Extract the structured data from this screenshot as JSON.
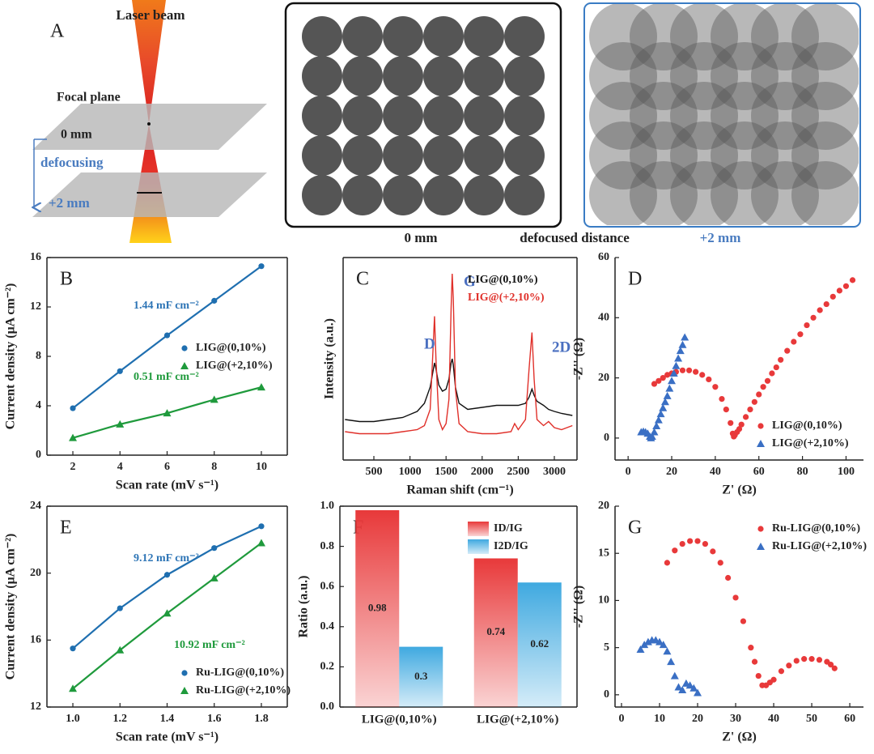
{
  "diagram": {
    "panel_label": "A",
    "laser": "Laser beam",
    "focal": "Focal plane",
    "zero": "0 mm",
    "defocusing": "defocusing",
    "plus2": "+2 mm",
    "caption_left": "0 mm",
    "caption_mid": "defocused distance",
    "caption_right": "+2 mm"
  },
  "chart_data": [
    {
      "type": "scatter",
      "panel_label": "B",
      "connect": true,
      "x_label": "Scan rate (mV s⁻¹)",
      "y_label": "Current density (μA cm⁻²)",
      "x": [
        2,
        4,
        6,
        8,
        10
      ],
      "xlim": [
        0.9,
        11.1
      ],
      "xticks": [
        2,
        4,
        6,
        8,
        10
      ],
      "ylim": [
        0,
        16
      ],
      "yticks": [
        0,
        4,
        8,
        12,
        16
      ],
      "series": [
        {
          "name": "LIG@(0,10%)",
          "color": "#1f6fb0",
          "marker": "circle",
          "values": [
            3.8,
            6.8,
            9.7,
            12.5,
            15.3
          ]
        },
        {
          "name": "LIG@(+2,10%)",
          "color": "#1f9a3c",
          "marker": "triangle",
          "values": [
            1.4,
            2.5,
            3.4,
            4.5,
            5.5
          ]
        }
      ],
      "annotations": [
        {
          "text": "1.44 mF cm⁻²",
          "color": "#2e75b6"
        },
        {
          "text": "0.51 mF cm⁻²",
          "color": "#1f9a3c"
        }
      ],
      "legend": "center right"
    },
    {
      "type": "line",
      "panel_label": "C",
      "x_label": "Raman shift (cm⁻¹)",
      "y_label": "Intensity (a.u.)",
      "x": [
        100,
        300,
        500,
        700,
        900,
        1100,
        1200,
        1280,
        1320,
        1340,
        1360,
        1400,
        1450,
        1500,
        1540,
        1570,
        1585,
        1600,
        1630,
        1680,
        1800,
        2000,
        2200,
        2400,
        2450,
        2500,
        2600,
        2650,
        2690,
        2720,
        2760,
        2850,
        2920,
        3000,
        3100,
        3250
      ],
      "xlim": [
        74,
        3314
      ],
      "xticks": [
        500,
        1000,
        1500,
        2000,
        2500,
        3000
      ],
      "ylim": [
        0,
        1
      ],
      "series": [
        {
          "name": "LIG@(0,10%)",
          "color": "#111111",
          "values": [
            0.2,
            0.19,
            0.19,
            0.2,
            0.21,
            0.24,
            0.28,
            0.36,
            0.44,
            0.48,
            0.45,
            0.37,
            0.34,
            0.35,
            0.4,
            0.48,
            0.5,
            0.47,
            0.36,
            0.28,
            0.25,
            0.26,
            0.27,
            0.27,
            0.27,
            0.27,
            0.28,
            0.31,
            0.35,
            0.32,
            0.29,
            0.27,
            0.25,
            0.24,
            0.23,
            0.22
          ]
        },
        {
          "name": "LIG@(+2,10%)",
          "color": "#e0302a",
          "values": [
            0.14,
            0.13,
            0.13,
            0.13,
            0.14,
            0.15,
            0.17,
            0.25,
            0.55,
            0.71,
            0.5,
            0.2,
            0.15,
            0.18,
            0.3,
            0.75,
            0.92,
            0.8,
            0.35,
            0.18,
            0.14,
            0.13,
            0.13,
            0.14,
            0.18,
            0.15,
            0.2,
            0.45,
            0.63,
            0.4,
            0.2,
            0.17,
            0.19,
            0.16,
            0.15,
            0.17
          ]
        }
      ],
      "annotations": [
        {
          "text": "D",
          "color": "#4a6fc0"
        },
        {
          "text": "G",
          "color": "#4a6fc0"
        },
        {
          "text": "2D",
          "color": "#4a6fc0"
        }
      ],
      "legend": "upper right"
    },
    {
      "type": "scatter",
      "panel_label": "D",
      "x_label": "Z' (Ω)",
      "y_label": "-Z'' (Ω)",
      "xlim": [
        -6,
        108
      ],
      "xticks": [
        0,
        20,
        40,
        60,
        80,
        100
      ],
      "ylim": [
        -7.3,
        60
      ],
      "yticks": [
        0,
        20,
        40,
        60
      ],
      "series": [
        {
          "name": "LIG@(0,10%)",
          "color": "#e8393a",
          "marker": "circle",
          "x": [
            12,
            14,
            16,
            18,
            20,
            22,
            25,
            28,
            31,
            34,
            37,
            40,
            43,
            45,
            47,
            48,
            48.5,
            49,
            50,
            51,
            52,
            54,
            56,
            58,
            60,
            62,
            64,
            66,
            68,
            70,
            73,
            76,
            79,
            82,
            85,
            88,
            91,
            94,
            97,
            100,
            103
          ],
          "values": [
            18,
            19,
            20,
            21,
            21.5,
            22,
            22.5,
            22.5,
            22,
            21,
            19.5,
            17,
            13,
            9.5,
            5,
            1.5,
            0.5,
            1,
            2,
            3,
            4.5,
            7,
            9.5,
            12,
            14.5,
            17,
            19,
            21.5,
            23.5,
            26,
            29,
            32,
            34.5,
            37.5,
            40,
            42.5,
            44.5,
            47,
            49,
            50.5,
            52.5
          ]
        },
        {
          "name": "LIG@(+2,10%)",
          "color": "#3a6fc4",
          "marker": "triangle",
          "x": [
            6,
            7,
            8,
            9,
            10,
            10.5,
            11,
            12,
            13,
            14,
            15,
            16,
            17,
            18,
            19,
            20,
            21,
            22,
            23,
            24,
            25,
            26
          ],
          "values": [
            2,
            2.2,
            2,
            1.5,
            0.5,
            0,
            0.5,
            2,
            4,
            6,
            8,
            10,
            12,
            14,
            16.5,
            19,
            21.5,
            24,
            26.5,
            29,
            31,
            33.5
          ]
        }
      ],
      "legend": "lower right"
    },
    {
      "type": "scatter",
      "panel_label": "E",
      "connect": true,
      "x_label": "Scan rate (mV s⁻¹)",
      "y_label": "Current density (μA cm⁻²)",
      "x": [
        1.0,
        1.2,
        1.4,
        1.6,
        1.8
      ],
      "xlim": [
        0.89,
        1.91
      ],
      "xticks": [
        {
          "value": 1,
          "label": "1.0"
        },
        1.2,
        1.4,
        1.6,
        1.8
      ],
      "ylim": [
        12,
        24
      ],
      "yticks": [
        12,
        16,
        20,
        24
      ],
      "series": [
        {
          "name": "Ru-LIG@(0,10%)",
          "color": "#1f6fb0",
          "marker": "circle",
          "values": [
            15.5,
            17.9,
            19.9,
            21.5,
            22.8
          ]
        },
        {
          "name": "Ru-LIG@(+2,10%)",
          "color": "#1f9a3c",
          "marker": "triangle",
          "values": [
            13.1,
            15.4,
            17.6,
            19.7,
            21.8
          ]
        }
      ],
      "annotations": [
        {
          "text": "9.12 mF cm⁻²",
          "color": "#2e75b6"
        },
        {
          "text": "10.92 mF cm⁻²",
          "color": "#1f9a3c"
        }
      ],
      "legend": "lower right"
    },
    {
      "type": "bar",
      "panel_label": "F",
      "y_label": "Ratio (a.u.)",
      "categories": [
        "LIG@(0,10%)",
        "LIG@(+2,10%)"
      ],
      "ylim": [
        0,
        1
      ],
      "yticks": [
        {
          "value": 0,
          "label": "0.0"
        },
        0.2,
        0.4,
        0.6,
        0.8,
        {
          "value": 1,
          "label": "1.0"
        }
      ],
      "series": [
        {
          "name": "ID/IG",
          "color": "#e8393a",
          "values": [
            0.98,
            0.74
          ]
        },
        {
          "name": "I2D/IG",
          "color": "#3fa9e0",
          "values": [
            0.3,
            0.62
          ]
        }
      ],
      "legend": "upper right"
    },
    {
      "type": "scatter",
      "panel_label": "G",
      "x_label": "Z' (Ω)",
      "y_label": "-Z'' (Ω)",
      "xlim": [
        -1.7,
        63.6
      ],
      "xticks": [
        0,
        10,
        20,
        30,
        40,
        50,
        60
      ],
      "ylim": [
        -1.3,
        20
      ],
      "yticks": [
        0,
        5,
        10,
        15,
        20
      ],
      "series": [
        {
          "name": "Ru-LIG@(0,10%)",
          "color": "#e8393a",
          "marker": "circle",
          "x": [
            12,
            14,
            16,
            18,
            20,
            22,
            24,
            26,
            28,
            30,
            32,
            34,
            35,
            36,
            37,
            38,
            39,
            40,
            42,
            44,
            46,
            48,
            50,
            52,
            54,
            55,
            56
          ],
          "values": [
            14,
            15.3,
            16,
            16.3,
            16.3,
            16,
            15.2,
            14,
            12.4,
            10.3,
            7.8,
            5,
            3.5,
            2,
            1,
            1,
            1.3,
            1.6,
            2.5,
            3.1,
            3.6,
            3.8,
            3.8,
            3.7,
            3.5,
            3.2,
            2.8
          ]
        },
        {
          "name": "Ru-LIG@(+2,10%)",
          "color": "#3a6fc4",
          "marker": "triangle",
          "x": [
            5,
            6,
            7,
            8,
            9,
            10,
            11,
            12,
            13,
            14,
            15,
            16,
            17,
            18,
            19,
            20
          ],
          "values": [
            4.8,
            5.3,
            5.6,
            5.8,
            5.8,
            5.6,
            5.3,
            4.6,
            3.5,
            2,
            0.8,
            0.5,
            1.2,
            1,
            0.7,
            0.2
          ]
        }
      ],
      "legend": "upper right"
    }
  ]
}
